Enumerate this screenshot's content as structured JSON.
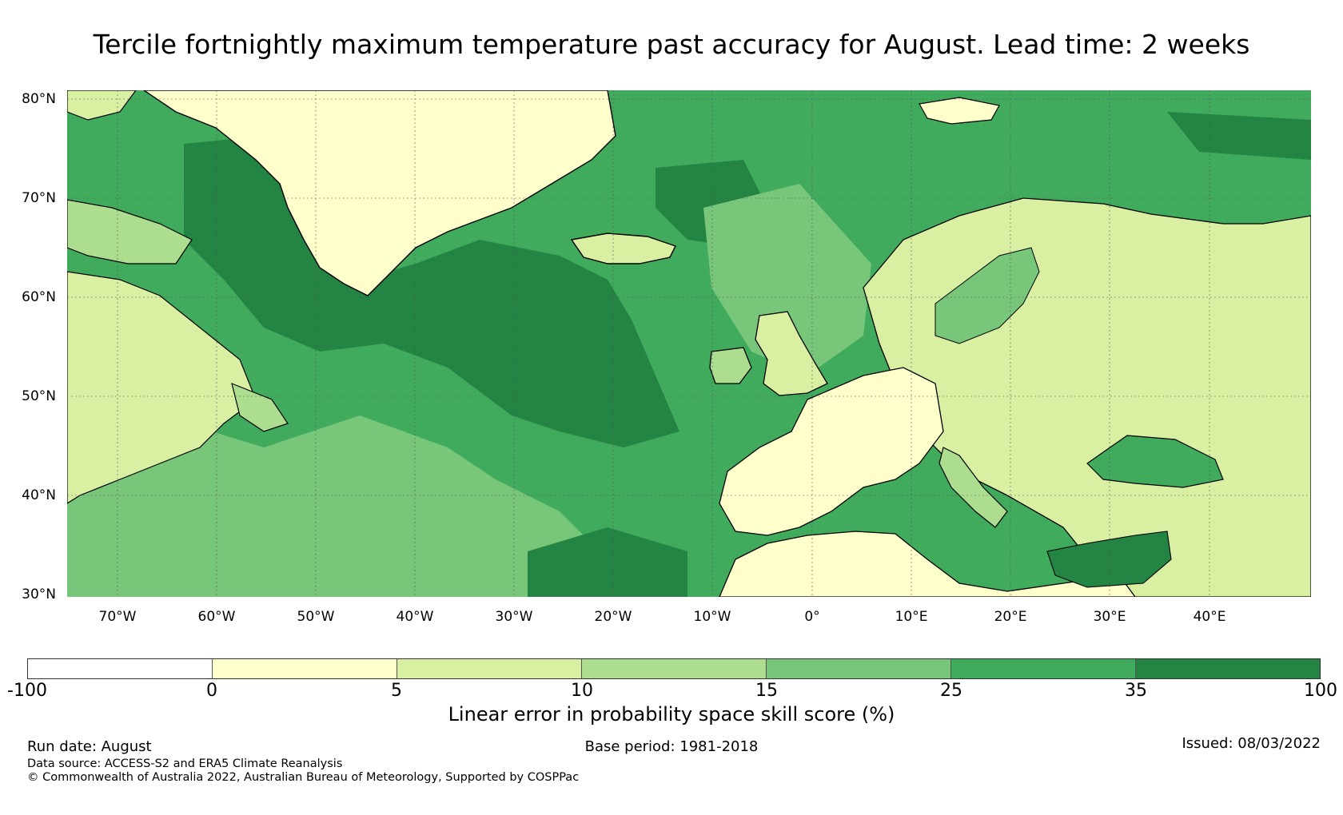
{
  "title": "Tercile fortnightly maximum temperature past accuracy for August. Lead time: 2 weeks",
  "map": {
    "lat_labels": [
      "80°N",
      "70°N",
      "60°N",
      "50°N",
      "40°N",
      "30°N"
    ],
    "lon_labels": [
      "70°W",
      "60°W",
      "50°W",
      "40°W",
      "30°W",
      "20°W",
      "10°W",
      "0°",
      "10°E",
      "20°E",
      "30°E",
      "40°E"
    ],
    "lat_values": [
      80,
      70,
      60,
      50,
      40,
      30
    ],
    "lon_values": [
      -70,
      -60,
      -50,
      -40,
      -30,
      -20,
      -10,
      0,
      10,
      20,
      30,
      40
    ],
    "extent": {
      "lon_min": -75,
      "lon_max": 50,
      "lat_min": 30,
      "lat_max": 81
    },
    "land_color": "#000000",
    "gridline_color": "#555555"
  },
  "colorbar": {
    "ticks": [
      "-100",
      "0",
      "5",
      "10",
      "15",
      "25",
      "35",
      "100"
    ],
    "colors": [
      "#ffffff",
      "#ffffcc",
      "#d9f0a3",
      "#addd8e",
      "#78c679",
      "#41ab5d",
      "#238443"
    ],
    "label": "Linear error in probability space skill score (%)"
  },
  "footer": {
    "run_date": "Run date: August",
    "base_period": "Base period: 1981-2018",
    "issued": "Issued: 08/03/2022",
    "data_source": "Data source: ACCESS-S2 and ERA5 Climate Reanalysis",
    "copyright": "© Commonwealth of Australia 2022, Australian Bureau of Meteorology, Supported by COSPPac"
  }
}
